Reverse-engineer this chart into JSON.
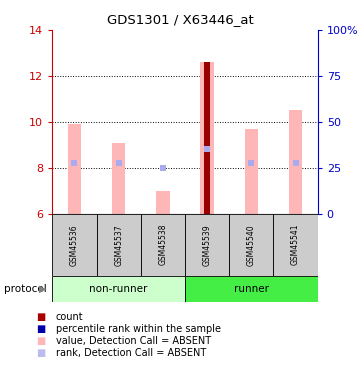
{
  "title": "GDS1301 / X63446_at",
  "samples": [
    "GSM45536",
    "GSM45537",
    "GSM45538",
    "GSM45539",
    "GSM45540",
    "GSM45541"
  ],
  "ylim_left": [
    6,
    14
  ],
  "ylim_right": [
    0,
    100
  ],
  "yticks_left": [
    6,
    8,
    10,
    12,
    14
  ],
  "yticks_right": [
    0,
    25,
    50,
    75,
    100
  ],
  "pink_bar_values": [
    9.9,
    9.1,
    7.0,
    12.6,
    9.7,
    10.5
  ],
  "blue_square_values": [
    8.2,
    8.2,
    8.0,
    8.8,
    8.2,
    8.2
  ],
  "bar_bottom": 6,
  "red_bar_sample_idx": 3,
  "bar_width": 0.3,
  "pink_color": "#FFB6B6",
  "blue_sq_color": "#AAAAEE",
  "red_color": "#990000",
  "nonrunner_color": "#CCFFCC",
  "runner_color": "#44EE44",
  "sample_box_color": "#CCCCCC",
  "left_axis_color": "#CC0000",
  "right_axis_color": "#0000CC",
  "legend_red_color": "#AA0000",
  "legend_blue_color": "#0000AA",
  "legend_pink_color": "#FFB6B6",
  "legend_lightblue_color": "#BBBBEE"
}
